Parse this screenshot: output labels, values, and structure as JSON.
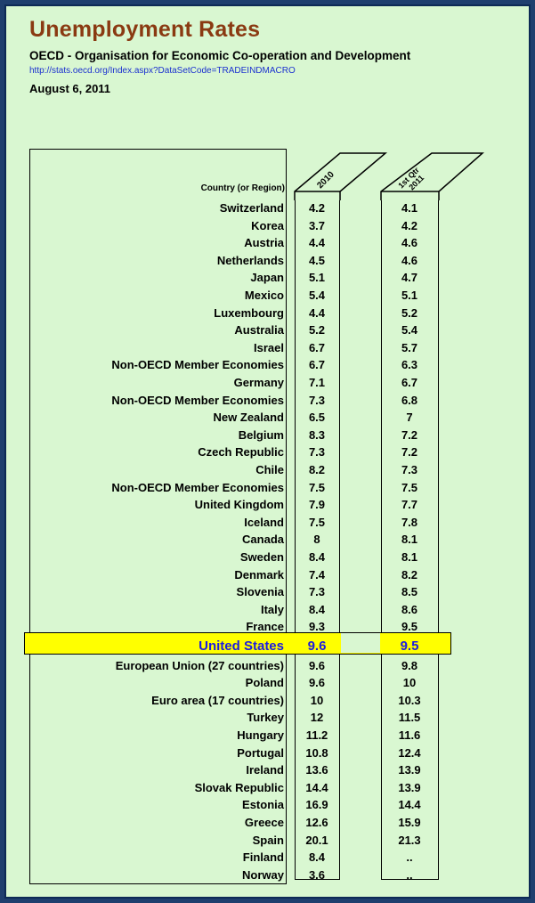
{
  "header": {
    "title": "Unemployment Rates",
    "subtitle": "OECD - Organisation for Economic Co-operation and Development",
    "url": "http://stats.oecd.org/Index.aspx?DataSetCode=TRADEINDMACRO",
    "date": "August 6, 2011"
  },
  "colors": {
    "background": "#d9f7d1",
    "frame": "#1f3f6e",
    "title": "#8a3a12",
    "highlight": "#ffff00",
    "highlight_text": "#1c1ce0"
  },
  "chart_data": {
    "type": "table",
    "columns": [
      "Country (or Region)",
      "2010",
      "1st Qtr 2011"
    ],
    "highlighted_row": "United States",
    "rows": [
      {
        "country": "Switzerland",
        "y2010": "4.2",
        "q1_2011": "4.1"
      },
      {
        "country": "Korea",
        "y2010": "3.7",
        "q1_2011": "4.2"
      },
      {
        "country": "Austria",
        "y2010": "4.4",
        "q1_2011": "4.6"
      },
      {
        "country": "Netherlands",
        "y2010": "4.5",
        "q1_2011": "4.6"
      },
      {
        "country": "Japan",
        "y2010": "5.1",
        "q1_2011": "4.7"
      },
      {
        "country": "Mexico",
        "y2010": "5.4",
        "q1_2011": "5.1"
      },
      {
        "country": "Luxembourg",
        "y2010": "4.4",
        "q1_2011": "5.2"
      },
      {
        "country": "Australia",
        "y2010": "5.2",
        "q1_2011": "5.4"
      },
      {
        "country": "Israel",
        "y2010": "6.7",
        "q1_2011": "5.7"
      },
      {
        "country": "Non-OECD Member Economies",
        "y2010": "6.7",
        "q1_2011": "6.3"
      },
      {
        "country": "Germany",
        "y2010": "7.1",
        "q1_2011": "6.7"
      },
      {
        "country": "Non-OECD Member Economies",
        "y2010": "7.3",
        "q1_2011": "6.8"
      },
      {
        "country": "New Zealand",
        "y2010": "6.5",
        "q1_2011": "7"
      },
      {
        "country": "Belgium",
        "y2010": "8.3",
        "q1_2011": "7.2"
      },
      {
        "country": "Czech Republic",
        "y2010": "7.3",
        "q1_2011": "7.2"
      },
      {
        "country": "Chile",
        "y2010": "8.2",
        "q1_2011": "7.3"
      },
      {
        "country": "Non-OECD Member Economies",
        "y2010": "7.5",
        "q1_2011": "7.5"
      },
      {
        "country": "United Kingdom",
        "y2010": "7.9",
        "q1_2011": "7.7"
      },
      {
        "country": "Iceland",
        "y2010": "7.5",
        "q1_2011": "7.8"
      },
      {
        "country": "Canada",
        "y2010": "8",
        "q1_2011": "8.1"
      },
      {
        "country": "Sweden",
        "y2010": "8.4",
        "q1_2011": "8.1"
      },
      {
        "country": "Denmark",
        "y2010": "7.4",
        "q1_2011": "8.2"
      },
      {
        "country": "Slovenia",
        "y2010": "7.3",
        "q1_2011": "8.5"
      },
      {
        "country": "Italy",
        "y2010": "8.4",
        "q1_2011": "8.6"
      },
      {
        "country": "France",
        "y2010": "9.3",
        "q1_2011": "9.5"
      },
      {
        "country": "United States",
        "y2010": "9.6",
        "q1_2011": "9.5"
      },
      {
        "country": "European Union (27 countries)",
        "y2010": "9.6",
        "q1_2011": "9.8"
      },
      {
        "country": "Poland",
        "y2010": "9.6",
        "q1_2011": "10"
      },
      {
        "country": "Euro area (17 countries)",
        "y2010": "10",
        "q1_2011": "10.3"
      },
      {
        "country": "Turkey",
        "y2010": "12",
        "q1_2011": "11.5"
      },
      {
        "country": "Hungary",
        "y2010": "11.2",
        "q1_2011": "11.6"
      },
      {
        "country": "Portugal",
        "y2010": "10.8",
        "q1_2011": "12.4"
      },
      {
        "country": "Ireland",
        "y2010": "13.6",
        "q1_2011": "13.9"
      },
      {
        "country": "Slovak Republic",
        "y2010": "14.4",
        "q1_2011": "13.9"
      },
      {
        "country": "Estonia",
        "y2010": "16.9",
        "q1_2011": "14.4"
      },
      {
        "country": "Greece",
        "y2010": "12.6",
        "q1_2011": "15.9"
      },
      {
        "country": "Spain",
        "y2010": "20.1",
        "q1_2011": "21.3"
      },
      {
        "country": "Finland",
        "y2010": "8.4",
        "q1_2011": ".."
      },
      {
        "country": "Norway",
        "y2010": "3.6",
        "q1_2011": ".."
      }
    ]
  }
}
